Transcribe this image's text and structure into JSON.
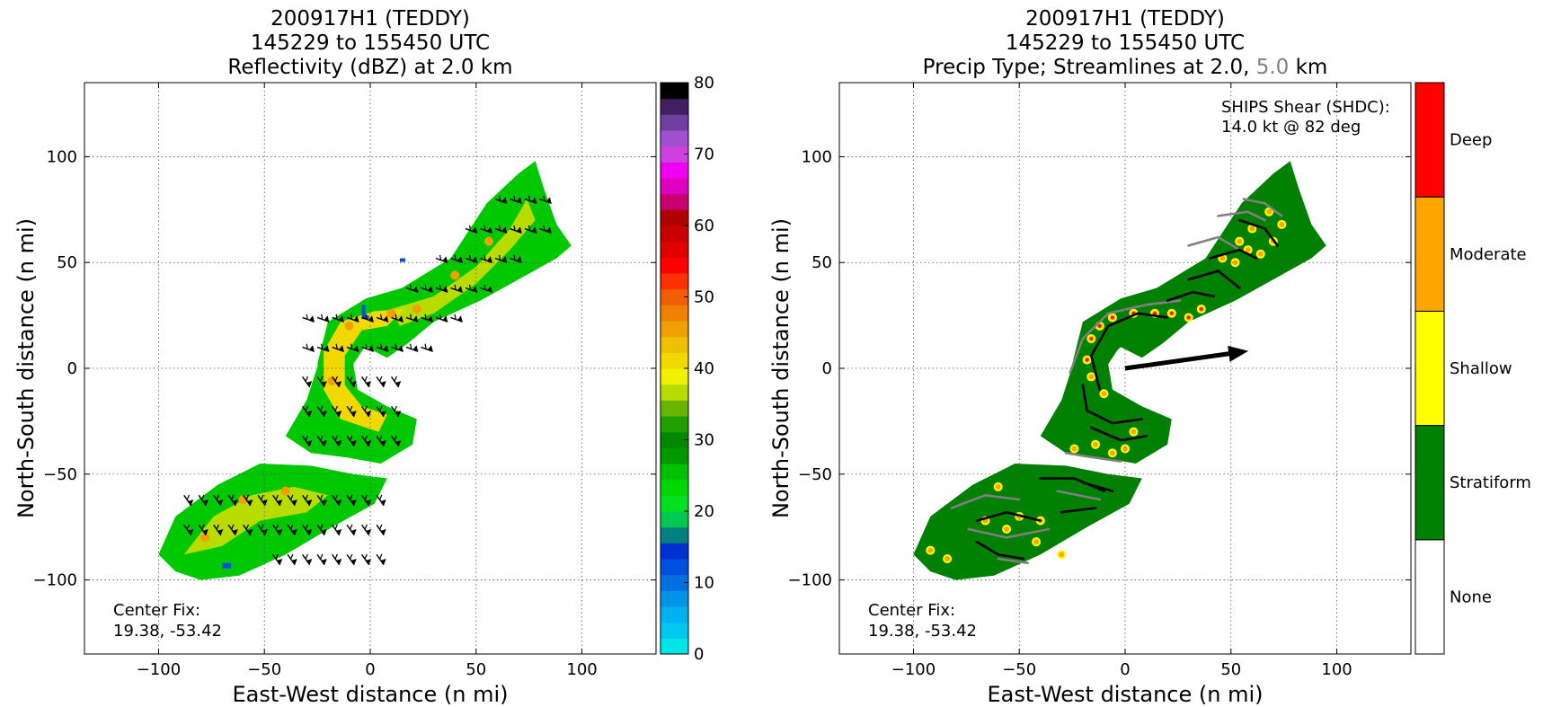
{
  "chart_data": [
    {
      "type": "heatmap",
      "title_lines": [
        "200917H1 (TEDDY)",
        "145229 to 155450 UTC",
        "Reflectivity (dBZ) at 2.0 km"
      ],
      "xlabel": "East-West distance (n mi)",
      "ylabel": "North-South distance (n mi)",
      "xlim": [
        -135,
        135
      ],
      "ylim": [
        -135,
        135
      ],
      "xticks": [
        -100,
        -50,
        0,
        50,
        100
      ],
      "yticks": [
        -100,
        -50,
        0,
        50,
        100
      ],
      "xtick_labels": [
        "−100",
        "−50",
        "0",
        "50",
        "100"
      ],
      "ytick_labels": [
        "−100",
        "−50",
        "0",
        "50",
        "100"
      ],
      "grid": true,
      "annotation_lines": [
        "Center Fix:",
        "19.38, -53.42"
      ],
      "colorbar": {
        "min": 0,
        "max": 80,
        "tick_values": [
          0,
          10,
          20,
          30,
          40,
          50,
          60,
          70,
          80
        ],
        "tick_labels": [
          "0",
          "10",
          "20",
          "30",
          "40",
          "50",
          "60",
          "70",
          "80"
        ],
        "colors": [
          "#00e5e5",
          "#00c8f0",
          "#00b0f0",
          "#0094e8",
          "#0070e0",
          "#0050e0",
          "#0030d0",
          "#008080",
          "#00c850",
          "#00e020",
          "#00d800",
          "#00c000",
          "#009800",
          "#008800",
          "#20a000",
          "#68b400",
          "#b8dc00",
          "#f0f000",
          "#f0d800",
          "#f0c000",
          "#f0a000",
          "#f08000",
          "#f06000",
          "#ff3000",
          "#ff0000",
          "#e00000",
          "#c80000",
          "#b00000",
          "#c80070",
          "#e000c0",
          "#f000f0",
          "#d040e0",
          "#a050d0",
          "#7040a0",
          "#402060",
          "#000000"
        ]
      },
      "wind_barbs": true
    },
    {
      "type": "heatmap",
      "title_lines": [
        "200917H1 (TEDDY)",
        "145229 to 155450 UTC"
      ],
      "title_line3": {
        "prefix": "Precip Type; Streamlines at 2.0, ",
        "highlight": "5.0",
        "suffix": " km",
        "highlight_color": "#808080"
      },
      "xlabel": "East-West distance (n mi)",
      "ylabel": "North-South distance (n mi)",
      "xlim": [
        -135,
        135
      ],
      "ylim": [
        -135,
        135
      ],
      "xticks": [
        -100,
        -50,
        0,
        50,
        100
      ],
      "yticks": [
        -100,
        -50,
        0,
        50,
        100
      ],
      "xtick_labels": [
        "−100",
        "−50",
        "0",
        "50",
        "100"
      ],
      "ytick_labels": [
        "−100",
        "−50",
        "0",
        "50",
        "100"
      ],
      "grid": true,
      "annotation_lines": [
        "Center Fix:",
        "19.38, -53.42"
      ],
      "shear_lines": [
        "SHIPS Shear (SHDC):",
        "14.0 kt @ 82 deg"
      ],
      "shear_vector": {
        "speed_kt": 14.0,
        "direction_deg": 82
      },
      "categories": [
        "None",
        "Stratiform",
        "Shallow",
        "Moderate",
        "Deep"
      ],
      "category_colors": [
        "#ffffff",
        "#008000",
        "#ffff00",
        "#ffa500",
        "#ff0000"
      ]
    }
  ]
}
